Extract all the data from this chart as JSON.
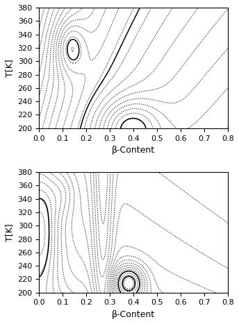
{
  "xlim": [
    0.0,
    0.8
  ],
  "ylim": [
    200,
    380
  ],
  "xticks": [
    0,
    0.1,
    0.2,
    0.3,
    0.4,
    0.5,
    0.6,
    0.7,
    0.8
  ],
  "yticks": [
    200,
    220,
    240,
    260,
    280,
    300,
    320,
    340,
    360,
    380
  ],
  "xlabel": "β-Content",
  "ylabel": "T[K]",
  "figsize": [
    3.44,
    4.67
  ],
  "dpi": 100
}
